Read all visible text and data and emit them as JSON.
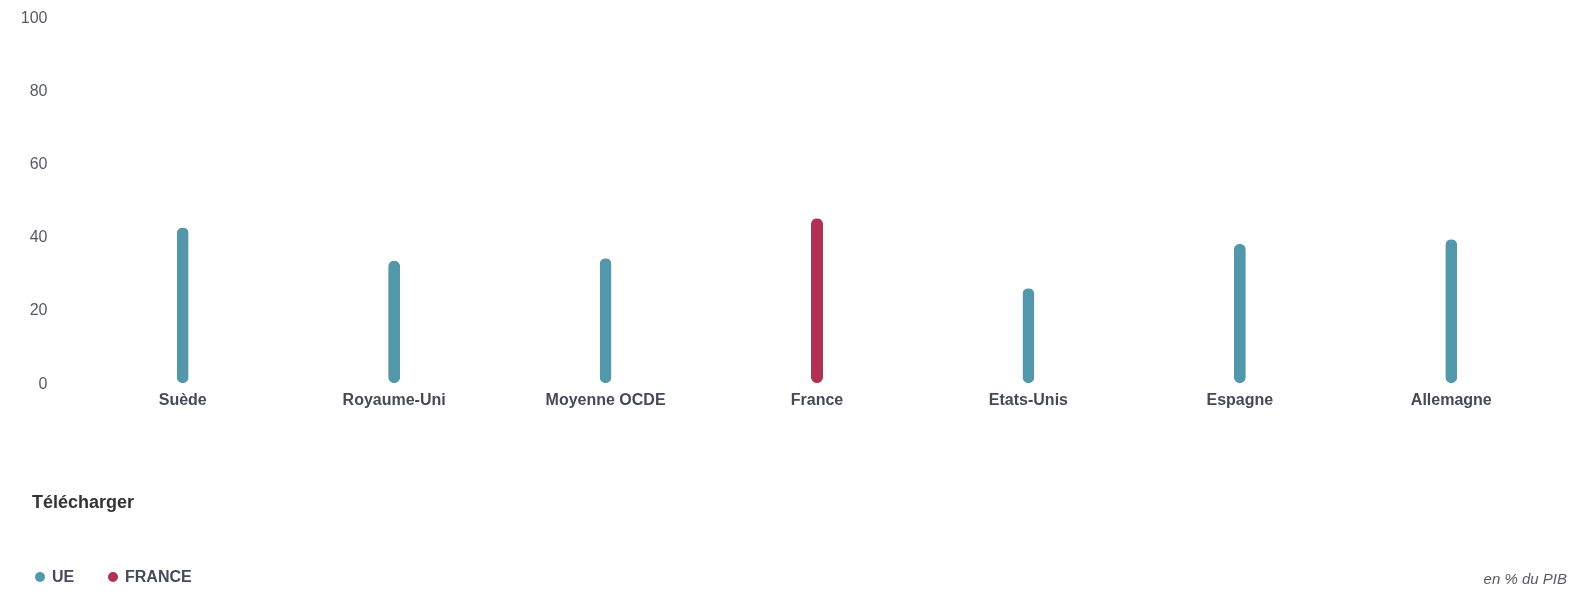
{
  "chart_data": {
    "type": "bar",
    "categories": [
      "Suède",
      "Royaume-Uni",
      "Moyenne OCDE",
      "France",
      "Etats-Unis",
      "Espagne",
      "Allemagne"
    ],
    "series": [
      {
        "name": "UE",
        "color": "#5297aa",
        "values": [
          42.5,
          33.4,
          34.1,
          null,
          25.9,
          38,
          39.3
        ]
      },
      {
        "name": "FRANCE",
        "color": "#b03252",
        "values": [
          null,
          null,
          null,
          45,
          null,
          null,
          null
        ]
      }
    ],
    "stacked": true,
    "ylim": [
      0,
      100
    ],
    "yticks": [
      0,
      20,
      40,
      60,
      80,
      100
    ],
    "grid": false,
    "legend": "bottom left",
    "annotations": [
      "Télécharger",
      "en % du PIB"
    ]
  }
}
